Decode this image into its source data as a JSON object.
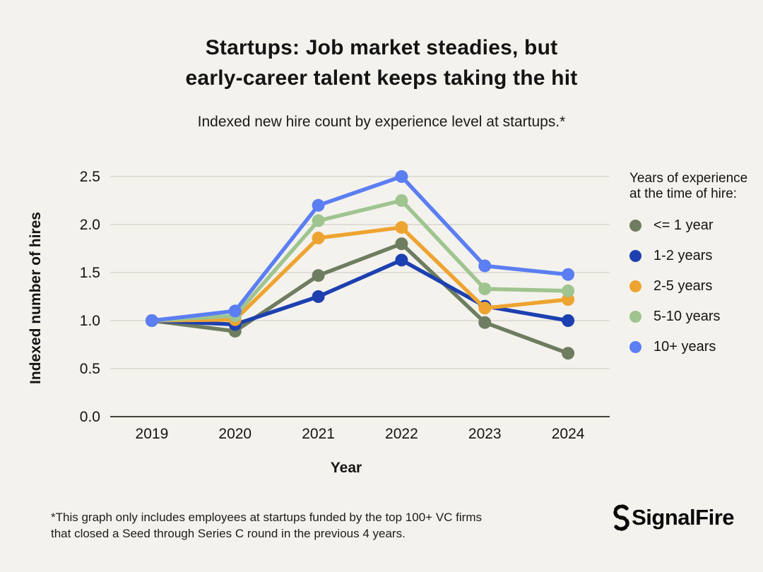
{
  "title": {
    "line1": "Startups: Job market steadies, but",
    "line2": "early-career talent keeps taking the hit"
  },
  "subtitle": "Indexed new hire count by experience level at startups.*",
  "legend": {
    "title": "Years of experience at the time of hire:"
  },
  "footnote": {
    "line1": "*This graph only includes employees at startups funded by the top 100+ VC firms",
    "line2": "that closed a Seed through Series C round in the previous 4 years."
  },
  "logo": {
    "text": "SignalFire"
  },
  "colors": {
    "background": "#f4f2ed",
    "text": "#141414",
    "gridline": "#d8d5cf",
    "axis_line": "#454239"
  },
  "chart_data": {
    "type": "line",
    "title": "Startups: Job market steadies, but early-career talent keeps taking the hit",
    "subtitle": "Indexed new hire count by experience level at startups.*",
    "categories": [
      "2019",
      "2020",
      "2021",
      "2022",
      "2023",
      "2024"
    ],
    "series": [
      {
        "name": "<= 1 year",
        "color": "#6e7c60",
        "values": [
          1.0,
          0.89,
          1.47,
          1.8,
          0.98,
          0.66
        ]
      },
      {
        "name": "1-2 years",
        "color": "#1d40b0",
        "values": [
          1.0,
          0.96,
          1.25,
          1.63,
          1.15,
          1.0
        ]
      },
      {
        "name": "2-5 years",
        "color": "#eea431",
        "values": [
          1.0,
          1.01,
          1.86,
          1.97,
          1.13,
          1.22
        ]
      },
      {
        "name": "5-10 years",
        "color": "#9fc490",
        "values": [
          1.0,
          1.05,
          2.04,
          2.25,
          1.33,
          1.31
        ]
      },
      {
        "name": "10+ years",
        "color": "#5b7ef2",
        "values": [
          1.0,
          1.1,
          2.2,
          2.5,
          1.57,
          1.48
        ]
      }
    ],
    "xlabel": "Year",
    "ylabel": "Indexed number of hires",
    "yticks": [
      0.0,
      0.5,
      1.0,
      1.5,
      2.0,
      2.5
    ],
    "ylim": [
      0.0,
      2.6
    ],
    "grid": true,
    "legend_title": "Years of experience at the time of hire:",
    "legend_position": "right"
  }
}
